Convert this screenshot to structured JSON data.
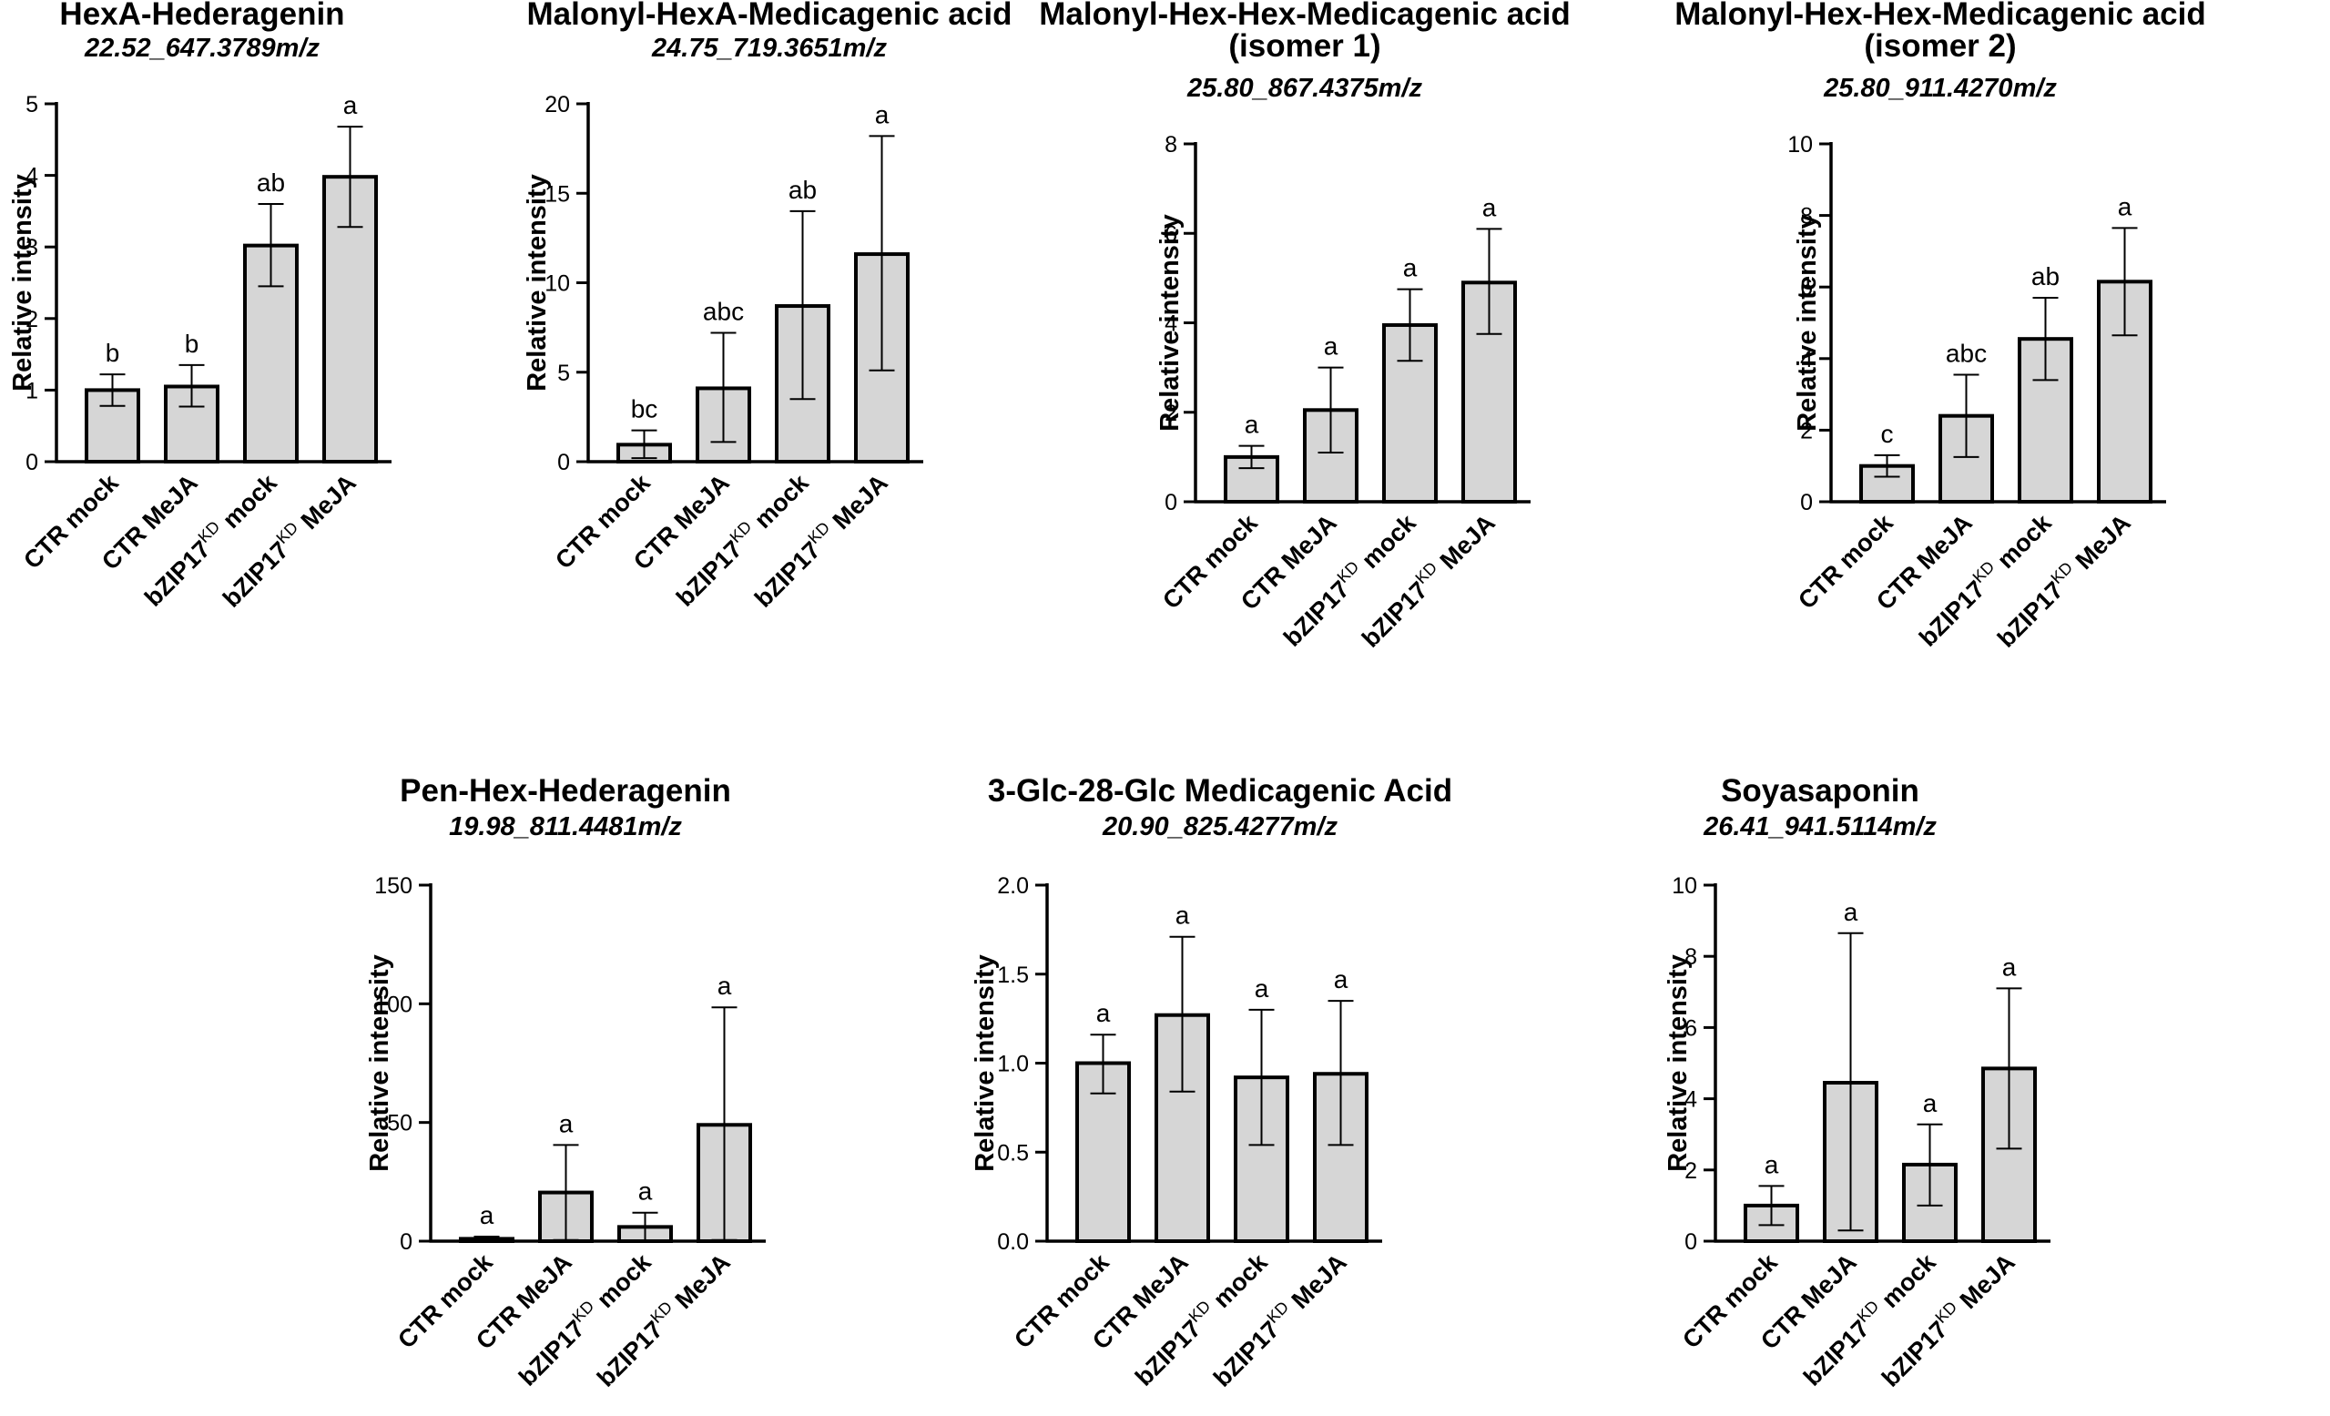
{
  "chart_data": [
    {
      "type": "bar",
      "title": "HexA-Hederagenin",
      "subtitle": "22.52_647.3789m/z",
      "ylabel": "Relative intensity",
      "ylim": [
        0,
        5
      ],
      "yticks": [
        "0",
        "1",
        "2",
        "3",
        "4",
        "5"
      ],
      "categories": [
        {
          "base": "CTR mock",
          "sup": "",
          "tail": ""
        },
        {
          "base": "CTR MeJA",
          "sup": "",
          "tail": ""
        },
        {
          "base": "bZIP17",
          "sup": "KD",
          "tail": " mock"
        },
        {
          "base": "bZIP17",
          "sup": "KD",
          "tail": " MeJA"
        }
      ],
      "values": [
        1.0,
        1.05,
        3.02,
        3.98
      ],
      "errors": [
        [
          0.78,
          1.22
        ],
        [
          0.77,
          1.35
        ],
        [
          2.45,
          3.6
        ],
        [
          3.28,
          4.68
        ]
      ],
      "significance": [
        "b",
        "b",
        "ab",
        "a"
      ]
    },
    {
      "type": "bar",
      "title": "Malonyl-HexA-Medicagenic acid",
      "subtitle": "24.75_719.3651m/z",
      "ylabel": "Relative intensity",
      "ylim": [
        0,
        20
      ],
      "yticks": [
        "0",
        "5",
        "10",
        "15",
        "20"
      ],
      "categories": [
        {
          "base": "CTR mock",
          "sup": "",
          "tail": ""
        },
        {
          "base": "CTR MeJA",
          "sup": "",
          "tail": ""
        },
        {
          "base": "bZIP17",
          "sup": "KD",
          "tail": " mock"
        },
        {
          "base": "bZIP17",
          "sup": "KD",
          "tail": " MeJA"
        }
      ],
      "values": [
        0.95,
        4.1,
        8.7,
        11.6
      ],
      "errors": [
        [
          0.2,
          1.75
        ],
        [
          1.1,
          7.2
        ],
        [
          3.5,
          14.0
        ],
        [
          5.1,
          18.2
        ]
      ],
      "significance": [
        "bc",
        "abc",
        "ab",
        "a"
      ]
    },
    {
      "type": "bar",
      "title": "Malonyl-Hex-Hex-Medicagenic acid",
      "title2": "(isomer 1)",
      "subtitle": "25.80_867.4375m/z",
      "ylabel": "Relative intensity",
      "ylim": [
        0,
        8
      ],
      "yticks": [
        "0",
        "2",
        "4",
        "6",
        "8"
      ],
      "categories": [
        {
          "base": "CTR mock",
          "sup": "",
          "tail": ""
        },
        {
          "base": "CTR MeJA",
          "sup": "",
          "tail": ""
        },
        {
          "base": "bZIP17",
          "sup": "KD",
          "tail": " mock"
        },
        {
          "base": "bZIP17",
          "sup": "KD",
          "tail": " MeJA"
        }
      ],
      "values": [
        1.0,
        2.05,
        3.95,
        4.9
      ],
      "errors": [
        [
          0.75,
          1.25
        ],
        [
          1.1,
          3.0
        ],
        [
          3.15,
          4.75
        ],
        [
          3.75,
          6.1
        ]
      ],
      "significance": [
        "a",
        "a",
        "a",
        "a"
      ]
    },
    {
      "type": "bar",
      "title": "Malonyl-Hex-Hex-Medicagenic acid",
      "title2": "(isomer 2)",
      "subtitle": "25.80_911.4270m/z",
      "ylabel": "Relative intensity",
      "ylim": [
        0,
        10
      ],
      "yticks": [
        "0",
        "2",
        "4",
        "6",
        "8",
        "10"
      ],
      "categories": [
        {
          "base": "CTR mock",
          "sup": "",
          "tail": ""
        },
        {
          "base": "CTR MeJA",
          "sup": "",
          "tail": ""
        },
        {
          "base": "bZIP17",
          "sup": "KD",
          "tail": " mock"
        },
        {
          "base": "bZIP17",
          "sup": "KD",
          "tail": " MeJA"
        }
      ],
      "values": [
        1.0,
        2.4,
        4.55,
        6.15
      ],
      "errors": [
        [
          0.7,
          1.3
        ],
        [
          1.25,
          3.55
        ],
        [
          3.4,
          5.7
        ],
        [
          4.65,
          7.65
        ]
      ],
      "significance": [
        "c",
        "abc",
        "ab",
        "a"
      ]
    },
    {
      "type": "bar",
      "title": "Pen-Hex-Hederagenin",
      "subtitle": "19.98_811.4481m/z",
      "ylabel": "Relative intensity",
      "ylim": [
        0,
        150
      ],
      "yticks": [
        "0",
        "50",
        "100",
        "150"
      ],
      "categories": [
        {
          "base": "CTR mock",
          "sup": "",
          "tail": ""
        },
        {
          "base": "CTR MeJA",
          "sup": "",
          "tail": ""
        },
        {
          "base": "bZIP17",
          "sup": "KD",
          "tail": " mock"
        },
        {
          "base": "bZIP17",
          "sup": "KD",
          "tail": " MeJA"
        }
      ],
      "values": [
        1.0,
        20.5,
        6.0,
        49.0
      ],
      "errors": [
        [
          0.2,
          1.9
        ],
        [
          0.5,
          40.5
        ],
        [
          0.4,
          12.0
        ],
        [
          0.5,
          98.5
        ]
      ],
      "significance": [
        "a",
        "a",
        "a",
        "a"
      ]
    },
    {
      "type": "bar",
      "title": "3-Glc-28-Glc Medicagenic Acid",
      "subtitle": "20.90_825.4277m/z",
      "ylabel": "Relative intensity",
      "ylim": [
        0,
        2.0
      ],
      "yticks": [
        "0.0",
        "0.5",
        "1.0",
        "1.5",
        "2.0"
      ],
      "categories": [
        {
          "base": "CTR mock",
          "sup": "",
          "tail": ""
        },
        {
          "base": "CTR MeJA",
          "sup": "",
          "tail": ""
        },
        {
          "base": "bZIP17",
          "sup": "KD",
          "tail": " mock"
        },
        {
          "base": "bZIP17",
          "sup": "KD",
          "tail": " MeJA"
        }
      ],
      "values": [
        1.0,
        1.27,
        0.92,
        0.94
      ],
      "errors": [
        [
          0.83,
          1.16
        ],
        [
          0.84,
          1.71
        ],
        [
          0.54,
          1.3
        ],
        [
          0.54,
          1.35
        ]
      ],
      "significance": [
        "a",
        "a",
        "a",
        "a"
      ]
    },
    {
      "type": "bar",
      "title": "Soyasaponin",
      "subtitle": "26.41_941.5114m/z",
      "ylabel": "Relative intensity",
      "ylim": [
        0,
        10
      ],
      "yticks": [
        "0",
        "2",
        "4",
        "6",
        "8",
        "10"
      ],
      "categories": [
        {
          "base": "CTR mock",
          "sup": "",
          "tail": ""
        },
        {
          "base": "CTR MeJA",
          "sup": "",
          "tail": ""
        },
        {
          "base": "bZIP17",
          "sup": "KD",
          "tail": " mock"
        },
        {
          "base": "bZIP17",
          "sup": "KD",
          "tail": " MeJA"
        }
      ],
      "values": [
        1.0,
        4.45,
        2.15,
        4.85
      ],
      "errors": [
        [
          0.45,
          1.55
        ],
        [
          0.3,
          8.65
        ],
        [
          1.0,
          3.28
        ],
        [
          2.6,
          7.1
        ]
      ],
      "significance": [
        "a",
        "a",
        "a",
        "a"
      ]
    }
  ]
}
